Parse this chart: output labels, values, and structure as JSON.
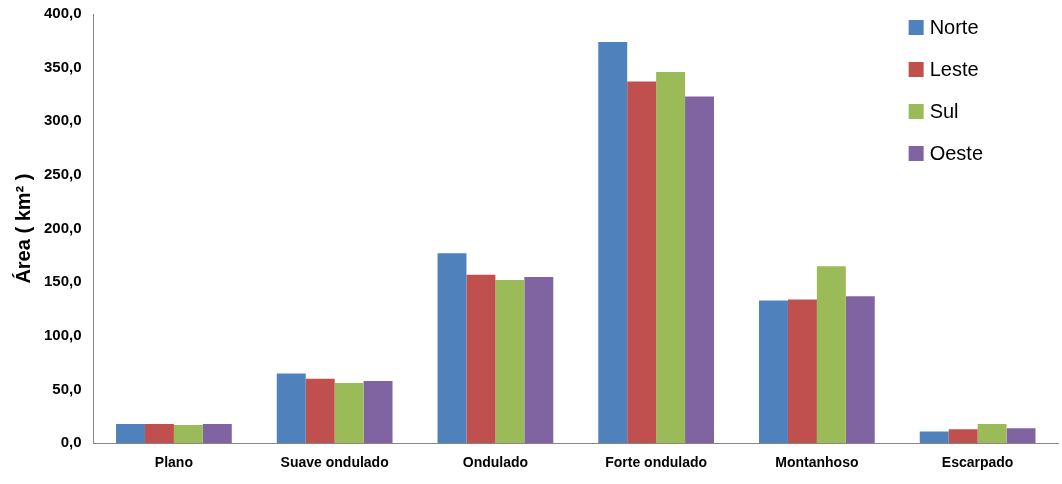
{
  "chart_data": {
    "type": "bar",
    "ylabel": "Área ( km² )",
    "categories": [
      "Plano",
      "Suave ondulado",
      "Ondulado",
      "Forte ondulado",
      "Montanhoso",
      "Escarpado"
    ],
    "series": [
      {
        "name": "Norte",
        "color": "#4f81bd",
        "values": [
          18,
          65,
          177,
          374,
          133,
          11
        ]
      },
      {
        "name": "Leste",
        "color": "#c0504d",
        "values": [
          18,
          60,
          157,
          337,
          134,
          13
        ]
      },
      {
        "name": "Sul",
        "color": "#9bbb59",
        "values": [
          17,
          56,
          152,
          346,
          165,
          18
        ]
      },
      {
        "name": "Oeste",
        "color": "#8064a2",
        "values": [
          18,
          58,
          155,
          323,
          137,
          14
        ]
      }
    ],
    "ylim": [
      0,
      400
    ],
    "yticks": [
      {
        "value": 0,
        "label": "0,0"
      },
      {
        "value": 50,
        "label": "50,0"
      },
      {
        "value": 100,
        "label": "100,0"
      },
      {
        "value": 150,
        "label": "150,0"
      },
      {
        "value": 200,
        "label": "200,0"
      },
      {
        "value": 250,
        "label": "250,0"
      },
      {
        "value": 300,
        "label": "300,0"
      },
      {
        "value": 350,
        "label": "350,0"
      },
      {
        "value": 400,
        "label": "400,0"
      }
    ],
    "legend": "top right",
    "grid": false
  }
}
